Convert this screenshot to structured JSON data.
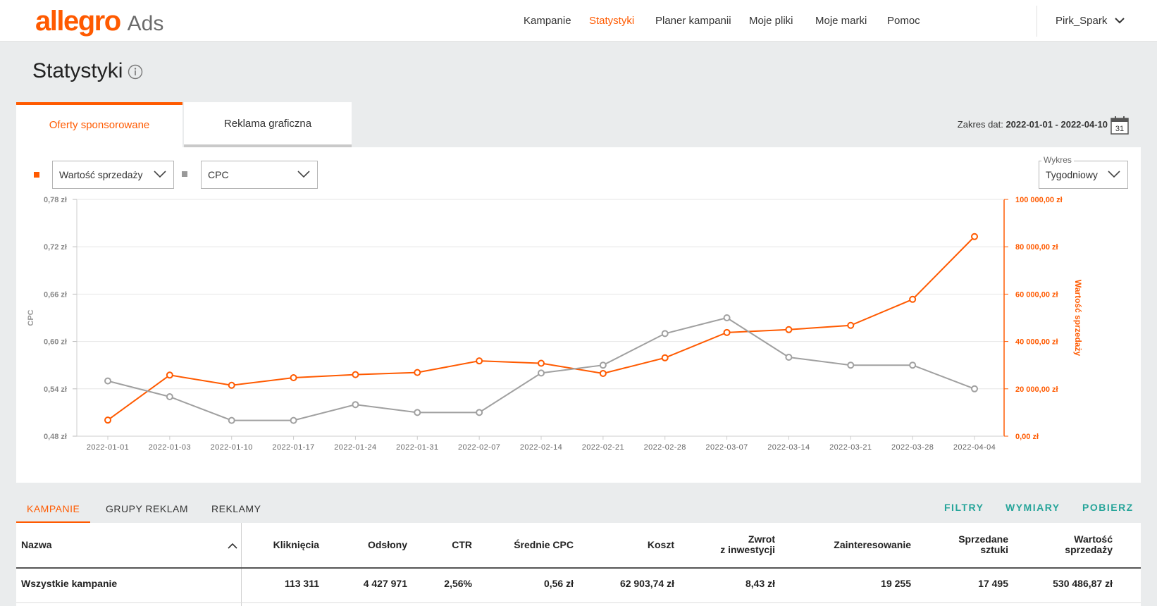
{
  "brand": {
    "logo": "allegro",
    "product": "Ads",
    "accent": "#ff5a00"
  },
  "nav": {
    "items": [
      {
        "label": "Kampanie",
        "active": false
      },
      {
        "label": "Statystyki",
        "active": true
      },
      {
        "label": "Planer kampanii",
        "active": false
      },
      {
        "label": "Moje pliki",
        "active": false
      },
      {
        "label": "Moje marki",
        "active": false
      },
      {
        "label": "Pomoc",
        "active": false
      }
    ],
    "user": "Pirk_Spark"
  },
  "page": {
    "title": "Statystyki"
  },
  "tabs": [
    {
      "label": "Oferty sponsorowane",
      "active": true
    },
    {
      "label": "Reklama graficzna",
      "active": false
    }
  ],
  "date_range": {
    "label": "Zakres dat:",
    "value": "2022-01-01 - 2022-04-10",
    "calendar_day": "31"
  },
  "chart_controls": {
    "metric1": "Wartość sprzedaży",
    "metric2": "CPC",
    "wykres_label": "Wykres",
    "wykres_value": "Tygodniowy"
  },
  "chart_data": {
    "type": "line",
    "x": [
      "2022-01-01",
      "2022-01-03",
      "2022-01-10",
      "2022-01-17",
      "2022-01-24",
      "2022-01-31",
      "2022-02-07",
      "2022-02-14",
      "2022-02-21",
      "2022-02-28",
      "2022-03-07",
      "2022-03-14",
      "2022-03-21",
      "2022-03-28",
      "2022-04-04"
    ],
    "series": [
      {
        "name": "Wartość sprzedaży",
        "color": "#ff5a00",
        "axis": "right",
        "values": [
          6800,
          25800,
          21500,
          24700,
          26000,
          26900,
          31800,
          30800,
          26500,
          33100,
          43800,
          45000,
          46800,
          57800,
          84300
        ]
      },
      {
        "name": "CPC",
        "color": "#a0a0a0",
        "axis": "left",
        "values": [
          0.55,
          0.53,
          0.5,
          0.5,
          0.52,
          0.51,
          0.51,
          0.56,
          0.57,
          0.61,
          0.63,
          0.58,
          0.57,
          0.57,
          0.54
        ]
      }
    ],
    "y_left": {
      "label": "CPC",
      "ylim": [
        0.48,
        0.78
      ],
      "ticks": [
        "0,48 zł",
        "0,54 zł",
        "0,60 zł",
        "0,66 zł",
        "0,72 zł",
        "0,78 zł"
      ]
    },
    "y_right": {
      "label": "Wartość sprzedaży",
      "ylim": [
        0,
        100000
      ],
      "ticks": [
        "0,00 zł",
        "20 000,00 zł",
        "40 000,00 zł",
        "60 000,00 zł",
        "80 000,00 zł",
        "100 000,00 zł"
      ]
    },
    "grid": true
  },
  "table_tabs": [
    {
      "label": "KAMPANIE",
      "active": true
    },
    {
      "label": "GRUPY REKLAM",
      "active": false
    },
    {
      "label": "REKLAMY",
      "active": false
    }
  ],
  "table_actions": [
    "FILTRY",
    "WYMIARY",
    "POBIERZ"
  ],
  "table": {
    "name_header": "Nazwa",
    "headers": [
      "Kliknięcia",
      "Odsłony",
      "CTR",
      "Średnie CPC",
      "Koszt",
      "Zwrot z inwestycji",
      "Zainteresowanie",
      "Sprzedane sztuki",
      "Wartość sprzedaży"
    ],
    "rows": [
      {
        "name": "Wszystkie kampanie",
        "values": [
          "113 311",
          "4 427 971",
          "2,56%",
          "0,56 zł",
          "62 903,74 zł",
          "8,43 zł",
          "19 255",
          "17 495",
          "530 486,87 zł"
        ]
      }
    ]
  }
}
